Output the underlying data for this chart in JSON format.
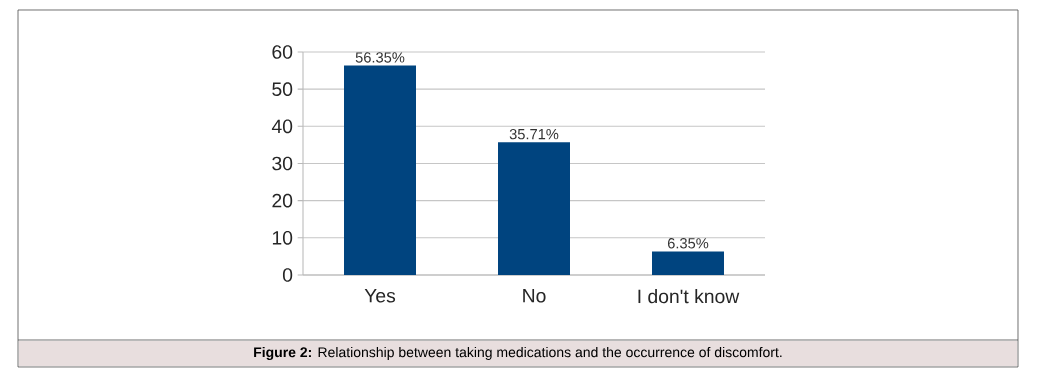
{
  "chart_data": {
    "type": "bar",
    "categories": [
      "Yes",
      "No",
      "I don't know"
    ],
    "values": [
      56.35,
      35.71,
      6.35
    ],
    "value_labels": [
      "56.35%",
      "35.71%",
      "6.35%"
    ],
    "color": "#00447f",
    "ylim": [
      0,
      60
    ],
    "yticks": [
      0,
      10,
      20,
      30,
      40,
      50,
      60
    ],
    "grid": "y",
    "annotations": [
      "**Figure 2:** Relationship between taking medications and the occurrence of discomfort."
    ]
  }
}
